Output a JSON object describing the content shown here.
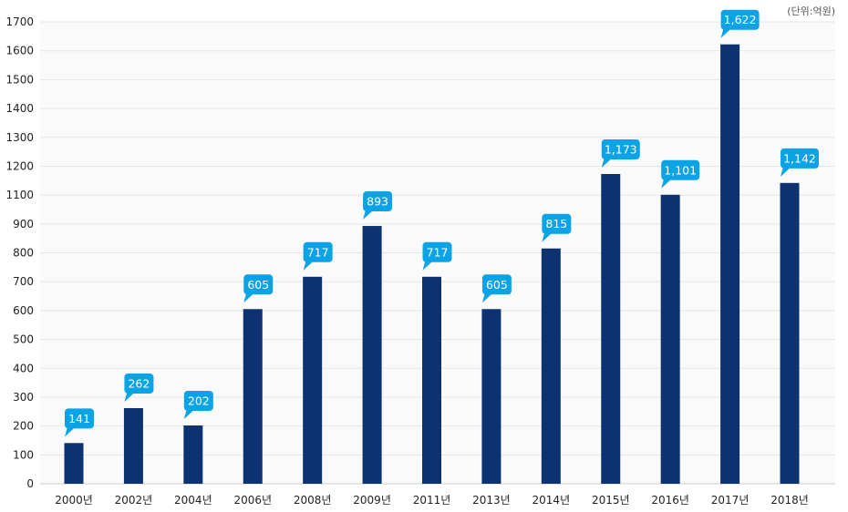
{
  "colors": {
    "bar": "#0d3272",
    "bubble": "#0aa4e6",
    "bubble_text": "#ffffff",
    "grid": "#e6e6e6",
    "plot_bg": "#fafafa",
    "axis": "#cfcfcf",
    "tick_text": "#222222"
  },
  "chart_data": {
    "type": "bar",
    "unit_label": "(단위:억원)",
    "categories": [
      "2000년",
      "2002년",
      "2004년",
      "2006년",
      "2008년",
      "2009년",
      "2011년",
      "2013년",
      "2014년",
      "2015년",
      "2016년",
      "2017년",
      "2018년"
    ],
    "values": [
      141,
      262,
      202,
      605,
      717,
      893,
      717,
      605,
      815,
      1173,
      1101,
      1622,
      1142
    ],
    "value_labels": [
      "141",
      "262",
      "202",
      "605",
      "717",
      "893",
      "717",
      "605",
      "815",
      "1,173",
      "1,101",
      "1,622",
      "1,142"
    ],
    "yticks": [
      0,
      100,
      200,
      300,
      400,
      500,
      600,
      700,
      800,
      900,
      1100,
      1200,
      1300,
      1400,
      1500,
      1600,
      1700
    ],
    "ylim": [
      0,
      1700
    ],
    "grid": true,
    "legend": "none"
  }
}
